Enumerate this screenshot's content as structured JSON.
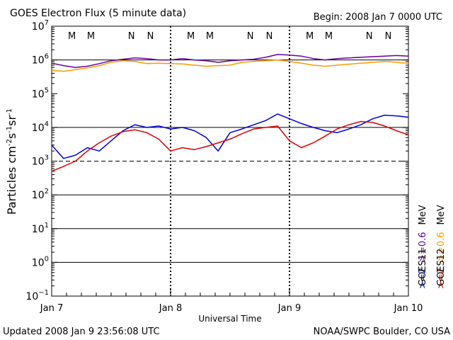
{
  "chart_data": {
    "type": "line",
    "title": "GOES Electron Flux (5 minute data)",
    "begin_label": "Begin: 2008 Jan 7 0000 UTC",
    "xlabel": "Universal Time",
    "ylabel_parts": [
      "Particles cm",
      "-2",
      "s",
      "-1",
      "sr",
      "-1"
    ],
    "y_scale": "log",
    "ylim_exp": [
      -1,
      7
    ],
    "y_tick_exponents": [
      7,
      6,
      5,
      4,
      3,
      2,
      1,
      0,
      -1
    ],
    "x_unit": "days since 2008-01-07 00:00 UTC",
    "xlim": [
      0,
      3
    ],
    "x_ticks": [
      {
        "value": 0,
        "label": "Jan 7"
      },
      {
        "value": 1,
        "label": "Jan 8"
      },
      {
        "value": 2,
        "label": "Jan 9"
      },
      {
        "value": 3,
        "label": "Jan 10"
      }
    ],
    "reference_lines": [
      {
        "value": 1000000,
        "style": "solid"
      },
      {
        "value": 10000,
        "style": "solid"
      },
      {
        "value": 1000,
        "style": "dashed"
      },
      {
        "value": 100,
        "style": "solid"
      },
      {
        "value": 10,
        "style": "solid"
      },
      {
        "value": 1,
        "style": "solid"
      }
    ],
    "markers": [
      {
        "label": "M",
        "x": 0.17,
        "color": "#dd0000"
      },
      {
        "label": "M",
        "x": 0.33,
        "color": "#0000dd"
      },
      {
        "label": "N",
        "x": 0.67,
        "color": "#dd0000"
      },
      {
        "label": "N",
        "x": 0.83,
        "color": "#0000dd"
      },
      {
        "label": "M",
        "x": 1.17,
        "color": "#dd0000"
      },
      {
        "label": "M",
        "x": 1.33,
        "color": "#0000dd"
      },
      {
        "label": "N",
        "x": 1.67,
        "color": "#dd0000"
      },
      {
        "label": "N",
        "x": 1.83,
        "color": "#0000dd"
      },
      {
        "label": "M",
        "x": 2.17,
        "color": "#dd0000"
      },
      {
        "label": "M",
        "x": 2.33,
        "color": "#0000dd"
      },
      {
        "label": "N",
        "x": 2.67,
        "color": "#dd0000"
      },
      {
        "label": "N",
        "x": 2.83,
        "color": "#0000dd"
      }
    ],
    "day_boundary_x": [
      1,
      2
    ],
    "series": [
      {
        "name": ">=0.6 MeV GOES11",
        "color": "#660099",
        "x": [
          0,
          0.1,
          0.2,
          0.3,
          0.4,
          0.5,
          0.6,
          0.7,
          0.8,
          0.9,
          1.0,
          1.1,
          1.2,
          1.3,
          1.4,
          1.5,
          1.6,
          1.7,
          1.8,
          1.9,
          2.0,
          2.1,
          2.2,
          2.3,
          2.4,
          2.5,
          2.6,
          2.7,
          2.8,
          2.9,
          3.0
        ],
        "y": [
          800000,
          680000,
          600000,
          650000,
          780000,
          950000,
          1050000,
          1150000,
          1100000,
          1000000,
          1000000,
          1100000,
          1000000,
          950000,
          850000,
          950000,
          1000000,
          1050000,
          1200000,
          1450000,
          1400000,
          1300000,
          1100000,
          1000000,
          1100000,
          1150000,
          1200000,
          1250000,
          1300000,
          1350000,
          1300000
        ]
      },
      {
        "name": ">=0.6 MeV GOES12",
        "color": "#ff9900",
        "x": [
          0,
          0.1,
          0.2,
          0.3,
          0.4,
          0.5,
          0.6,
          0.7,
          0.8,
          0.9,
          1.0,
          1.1,
          1.2,
          1.3,
          1.4,
          1.5,
          1.6,
          1.7,
          1.8,
          1.9,
          2.0,
          2.1,
          2.2,
          2.3,
          2.4,
          2.5,
          2.6,
          2.7,
          2.8,
          2.9,
          3.0
        ],
        "y": [
          500000,
          460000,
          520000,
          580000,
          680000,
          850000,
          950000,
          900000,
          780000,
          800000,
          780000,
          760000,
          700000,
          650000,
          680000,
          700000,
          850000,
          900000,
          950000,
          1000000,
          900000,
          800000,
          700000,
          650000,
          700000,
          750000,
          800000,
          850000,
          900000,
          850000,
          800000
        ]
      },
      {
        "name": ">=2 MeV GOES11",
        "color": "#0000dd",
        "x": [
          0,
          0.1,
          0.2,
          0.3,
          0.4,
          0.5,
          0.6,
          0.7,
          0.8,
          0.9,
          1.0,
          1.1,
          1.2,
          1.3,
          1.4,
          1.5,
          1.6,
          1.7,
          1.8,
          1.9,
          2.0,
          2.1,
          2.2,
          2.3,
          2.4,
          2.5,
          2.6,
          2.7,
          2.8,
          2.9,
          3.0
        ],
        "y": [
          3000,
          1200,
          1500,
          2500,
          2000,
          4000,
          8000,
          12000,
          10000,
          11000,
          9000,
          10000,
          8000,
          5000,
          2000,
          7000,
          9000,
          12000,
          16000,
          25000,
          18000,
          13000,
          10000,
          8000,
          7000,
          9000,
          12000,
          18000,
          23000,
          22000,
          20000
        ]
      },
      {
        "name": ">=2 MeV GOES12",
        "color": "#dd0000",
        "x": [
          0,
          0.1,
          0.2,
          0.3,
          0.4,
          0.5,
          0.6,
          0.7,
          0.8,
          0.9,
          1.0,
          1.1,
          1.2,
          1.3,
          1.4,
          1.5,
          1.6,
          1.7,
          1.8,
          1.9,
          2.0,
          2.1,
          2.2,
          2.3,
          2.4,
          2.5,
          2.6,
          2.7,
          2.8,
          2.9,
          3.0
        ],
        "y": [
          500,
          700,
          1000,
          2000,
          3500,
          5500,
          7500,
          8500,
          7000,
          4500,
          2000,
          2500,
          2200,
          2700,
          3500,
          4500,
          6500,
          9000,
          10000,
          11000,
          4000,
          2500,
          3500,
          5500,
          9000,
          12000,
          15000,
          14000,
          11000,
          8000,
          6000
        ]
      }
    ],
    "legend": {
      "col1": [
        {
          "text": ">=2",
          "color": "#0000dd"
        },
        {
          "text": ">=0.6",
          "color": "#660099"
        },
        {
          "text": "MeV",
          "color": "#000000"
        },
        {
          "text": "GOES11",
          "color": "#000000"
        }
      ],
      "col2": [
        {
          "text": ">=2",
          "color": "#dd0000"
        },
        {
          "text": ">=0.6",
          "color": "#ff9900"
        },
        {
          "text": "MeV",
          "color": "#000000"
        },
        {
          "text": "GOES12",
          "color": "#000000"
        }
      ]
    }
  },
  "footer": {
    "updated": "Updated 2008 Jan  9 23:56:08 UTC",
    "source": "NOAA/SWPC Boulder, CO USA"
  }
}
